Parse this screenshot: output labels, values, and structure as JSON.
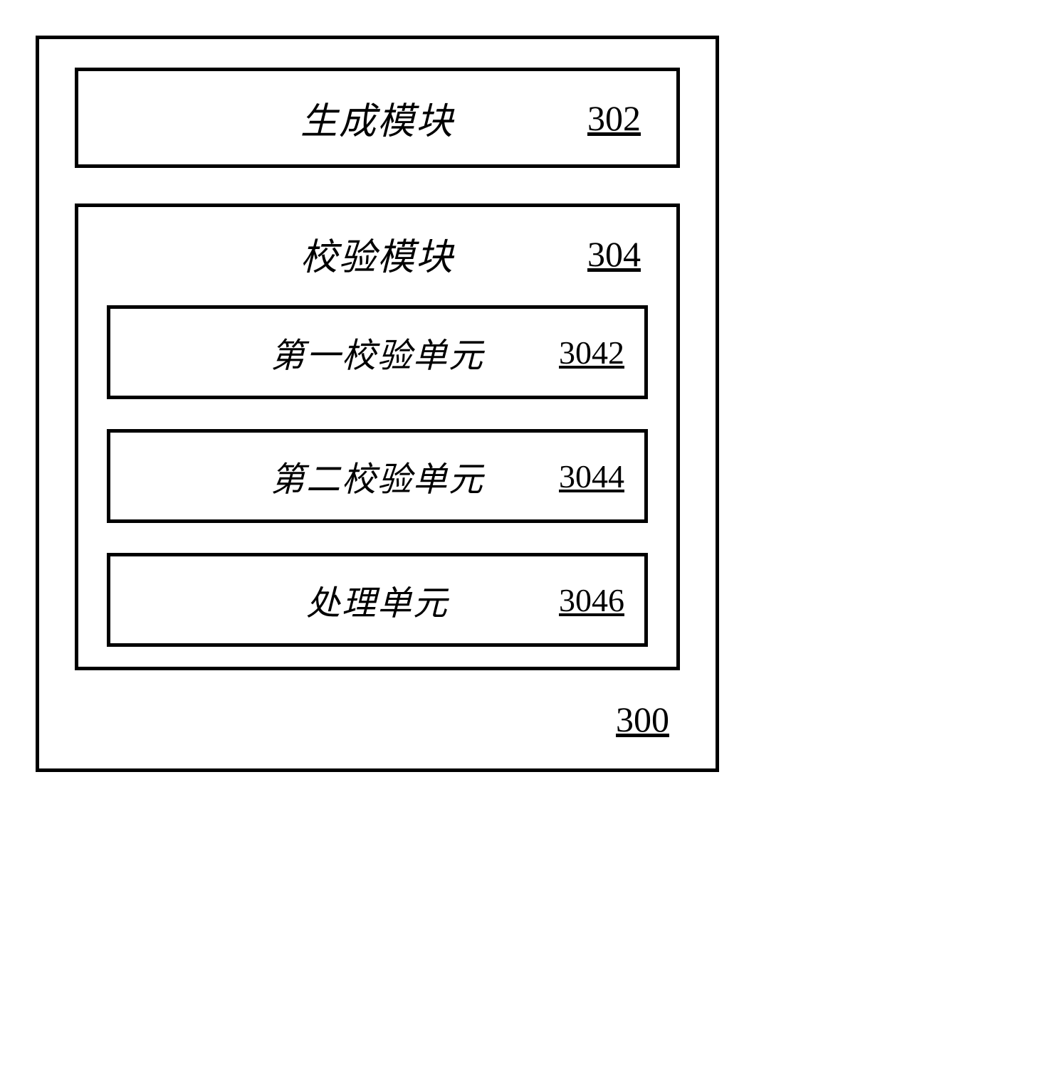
{
  "diagram": {
    "outer_ref": "300",
    "border_color": "#000000",
    "background_color": "#ffffff",
    "text_color": "#000000",
    "font_family_cjk": "KaiTi",
    "font_family_num": "Times New Roman",
    "title_fontsize": 52,
    "ref_fontsize": 50,
    "inner_title_fontsize": 48,
    "inner_ref_fontsize": 46,
    "border_width": 5,
    "modules": [
      {
        "title": "生成模块",
        "ref": "302",
        "children": []
      },
      {
        "title": "校验模块",
        "ref": "304",
        "children": [
          {
            "title": "第一校验单元",
            "ref": "3042"
          },
          {
            "title": "第二校验单元",
            "ref": "3044"
          },
          {
            "title": "处理单元",
            "ref": "3046"
          }
        ]
      }
    ]
  }
}
